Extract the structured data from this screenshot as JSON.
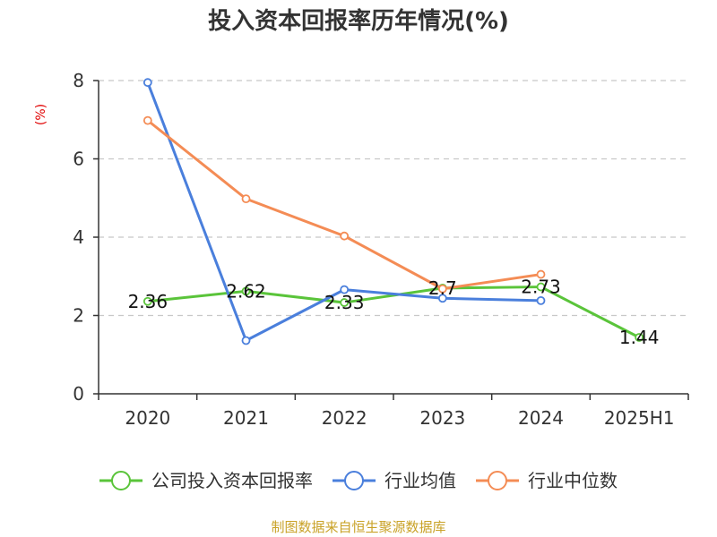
{
  "chart_data": {
    "type": "line",
    "title": "投入资本回报率历年情况(%)",
    "ylabel": "(%)",
    "xlabel": "",
    "categories": [
      "2020",
      "2021",
      "2022",
      "2023",
      "2024",
      "2025H1"
    ],
    "ylim": [
      0,
      8
    ],
    "yticks": [
      0,
      2,
      4,
      6,
      8
    ],
    "grid": true,
    "legend_position": "bottom",
    "series": [
      {
        "name": "公司投入资本回报率",
        "color": "#5ac43a",
        "values": [
          2.36,
          2.62,
          2.33,
          2.7,
          2.73,
          1.44
        ],
        "data_labels": [
          "2.36",
          "2.62",
          "2.33",
          "2.7",
          "2.73",
          "1.44"
        ]
      },
      {
        "name": "行业均值",
        "color": "#4a7fdc",
        "values": [
          7.95,
          1.36,
          2.66,
          2.44,
          2.38,
          null
        ]
      },
      {
        "name": "行业中位数",
        "color": "#f48c55",
        "values": [
          6.98,
          4.98,
          4.03,
          2.68,
          3.05,
          null
        ]
      }
    ]
  },
  "source_text": "制图数据来自恒生聚源数据库"
}
